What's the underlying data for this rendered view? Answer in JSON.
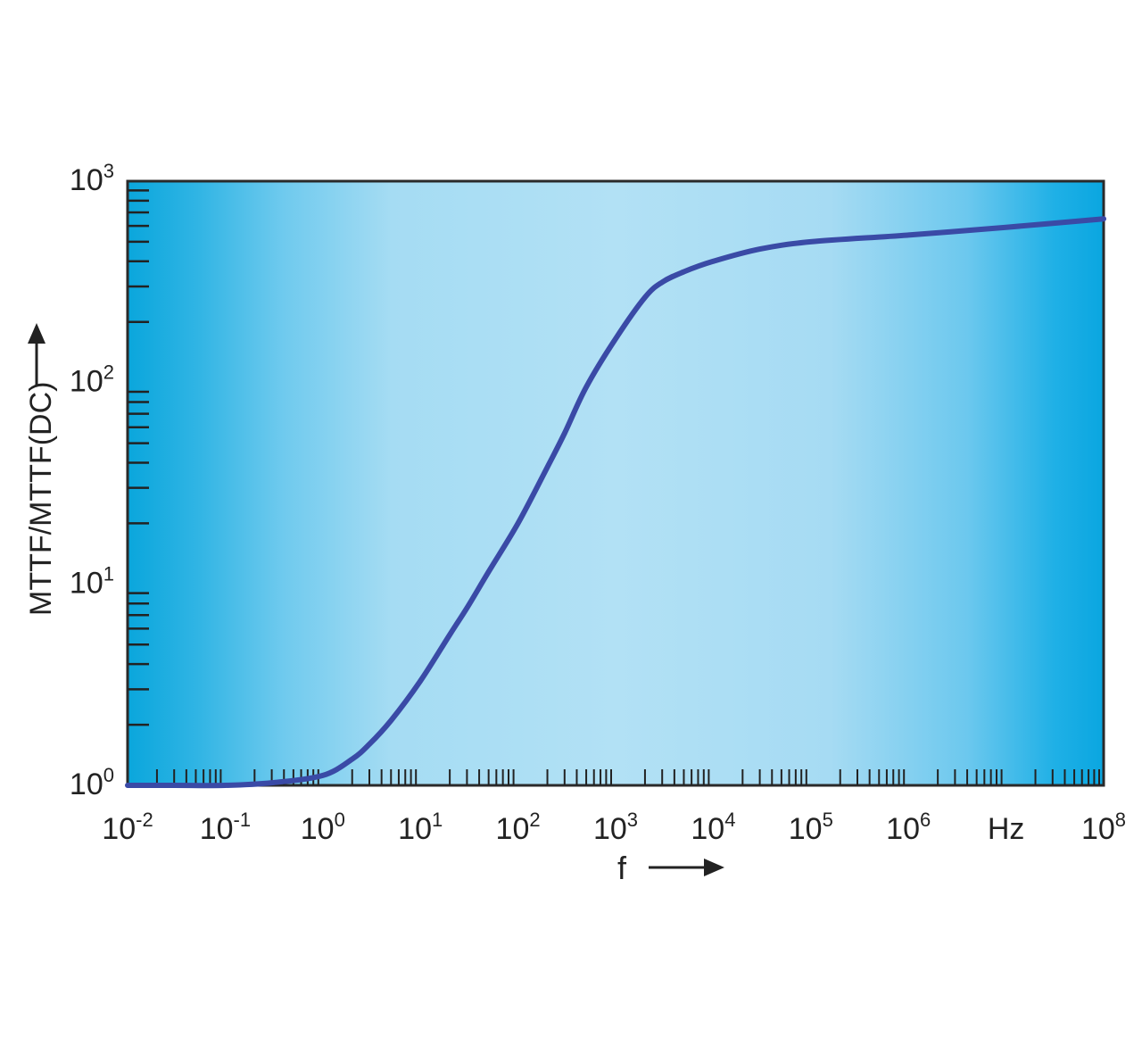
{
  "chart_data": {
    "type": "line",
    "xscale": "log",
    "yscale": "log",
    "xlim": [
      0.01,
      100000000
    ],
    "ylim": [
      1,
      1000
    ],
    "xlabel": "f",
    "ylabel": "MTTF/MTTF(DC)",
    "x_unit": "Hz",
    "grid": false,
    "x_ticks": [
      {
        "base": "10",
        "exp": "-2",
        "value": 0.01
      },
      {
        "base": "10",
        "exp": "-1",
        "value": 0.1
      },
      {
        "base": "10",
        "exp": "0",
        "value": 1
      },
      {
        "base": "10",
        "exp": "1",
        "value": 10
      },
      {
        "base": "10",
        "exp": "2",
        "value": 100
      },
      {
        "base": "10",
        "exp": "3",
        "value": 1000
      },
      {
        "base": "10",
        "exp": "4",
        "value": 10000
      },
      {
        "base": "10",
        "exp": "5",
        "value": 100000
      },
      {
        "base": "10",
        "exp": "6",
        "value": 1000000
      },
      {
        "base": "Hz",
        "exp": "",
        "value": 10000000
      },
      {
        "base": "10",
        "exp": "8",
        "value": 100000000
      }
    ],
    "y_ticks": [
      {
        "base": "10",
        "exp": "0",
        "value": 1
      },
      {
        "base": "10",
        "exp": "1",
        "value": 10
      },
      {
        "base": "10",
        "exp": "2",
        "value": 100
      },
      {
        "base": "10",
        "exp": "3",
        "value": 1000
      }
    ],
    "series": [
      {
        "color": "#3a4aa6",
        "x": [
          0.01,
          0.03,
          0.1,
          0.3,
          1,
          2,
          3,
          5,
          10,
          20,
          30,
          50,
          100,
          200,
          300,
          500,
          1000,
          2000,
          3000,
          5000,
          10000,
          30000,
          100000,
          1000000,
          10000000,
          100000000
        ],
        "y": [
          1,
          1,
          1,
          1.03,
          1.12,
          1.35,
          1.6,
          2.1,
          3.3,
          5.6,
          7.6,
          11.5,
          20,
          38,
          56,
          95,
          165,
          265,
          315,
          355,
          400,
          460,
          500,
          540,
          590,
          650
        ]
      }
    ]
  }
}
